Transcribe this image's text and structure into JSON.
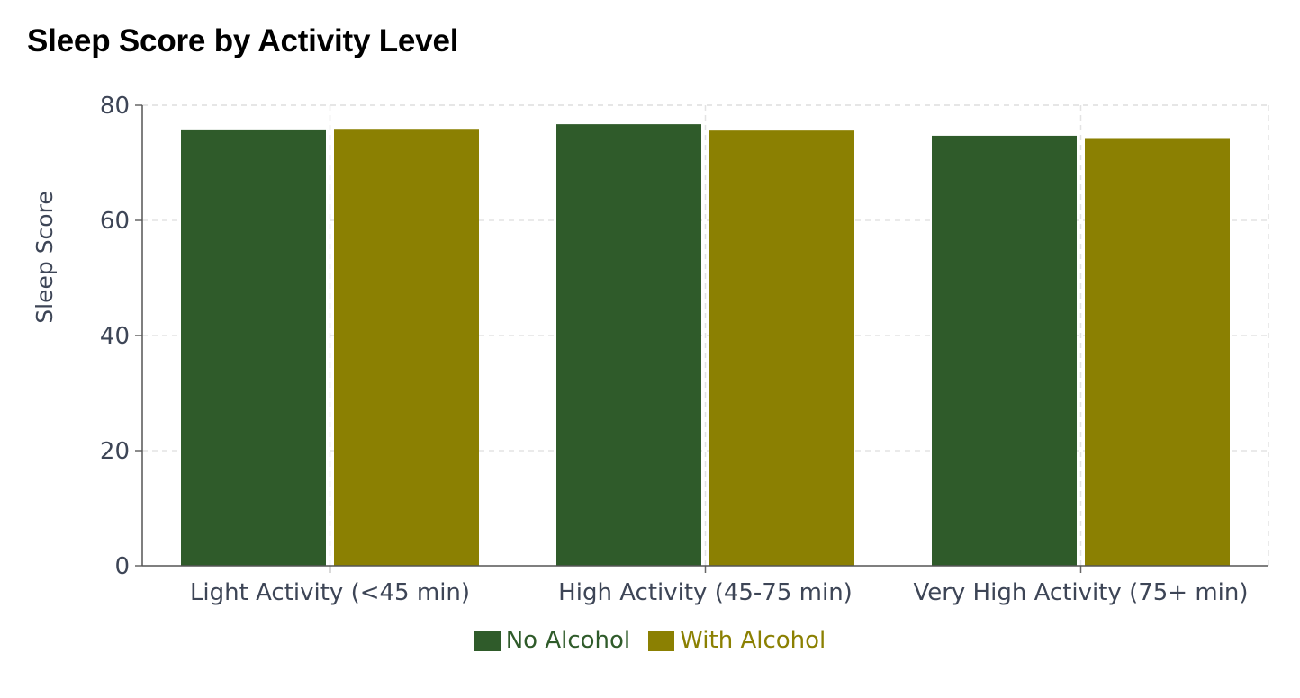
{
  "chart_data": {
    "type": "bar",
    "title": "Sleep Score by Activity Level",
    "xlabel": "",
    "ylabel": "Sleep Score",
    "categories": [
      "Light Activity (<45 min)",
      "High Activity (45-75 min)",
      "Very High Activity (75+ min)"
    ],
    "series": [
      {
        "name": "No Alcohol",
        "color": "#2f5b2a",
        "values": [
          75.8,
          76.7,
          74.7
        ]
      },
      {
        "name": "With Alcohol",
        "color": "#8b8002",
        "values": [
          75.9,
          75.6,
          74.3
        ]
      }
    ],
    "ylim": [
      0,
      80
    ],
    "yticks": [
      0,
      20,
      40,
      60,
      80
    ],
    "grid": true,
    "legend_position": "bottom-center"
  }
}
